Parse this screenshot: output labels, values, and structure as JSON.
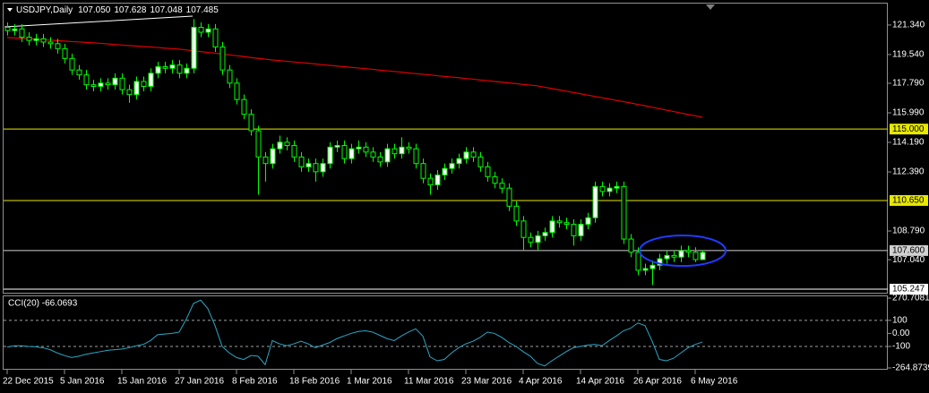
{
  "header": {
    "symbol": "USDJPY,Daily",
    "ohlc": [
      "107.050",
      "107.628",
      "107.048",
      "107.485"
    ]
  },
  "chart_data": [
    {
      "type": "candlestick",
      "categories": [
        "22 Dec 2015",
        null,
        null,
        null,
        null,
        null,
        null,
        null,
        "5 Jan 2016",
        null,
        null,
        null,
        null,
        null,
        null,
        null,
        "15 Jan 2016",
        null,
        null,
        null,
        null,
        null,
        null,
        null,
        "27 Jan 2016",
        null,
        null,
        null,
        null,
        null,
        null,
        null,
        "8 Feb 2016",
        null,
        null,
        null,
        null,
        null,
        null,
        null,
        "18 Feb 2016",
        null,
        null,
        null,
        null,
        null,
        null,
        null,
        "1 Mar 2016",
        null,
        null,
        null,
        null,
        null,
        null,
        null,
        "11 Mar 2016",
        null,
        null,
        null,
        null,
        null,
        null,
        null,
        "23 Mar 2016",
        null,
        null,
        null,
        null,
        null,
        null,
        null,
        "4 Apr 2016",
        null,
        null,
        null,
        null,
        null,
        null,
        null,
        "14 Apr 2016",
        null,
        null,
        null,
        null,
        null,
        null,
        null,
        "26 Apr 2016",
        null,
        null,
        null,
        null,
        null,
        null,
        null,
        "6 May 2016",
        null
      ],
      "open": [
        121.2,
        121.0,
        121.1,
        120.6,
        120.4,
        120.5,
        120.3,
        120.2,
        119.9,
        119.3,
        118.6,
        118.3,
        117.7,
        117.6,
        117.8,
        117.7,
        118.1,
        117.4,
        117.1,
        117.9,
        117.6,
        118.4,
        118.8,
        118.7,
        118.9,
        118.4,
        118.7,
        121.2,
        120.9,
        121.1,
        120.0,
        118.6,
        117.8,
        116.8,
        115.9,
        114.9,
        113.3,
        112.9,
        113.8,
        114.2,
        114.0,
        113.3,
        112.7,
        112.9,
        112.4,
        112.9,
        113.9,
        114.0,
        113.2,
        113.8,
        113.9,
        113.6,
        113.3,
        113.0,
        113.8,
        113.5,
        113.9,
        113.8,
        112.9,
        112.0,
        111.6,
        112.2,
        112.6,
        112.9,
        113.2,
        113.6,
        113.3,
        112.7,
        112.1,
        111.7,
        111.4,
        110.3,
        109.4,
        108.4,
        108.1,
        108.5,
        108.7,
        109.4,
        109.3,
        109.2,
        108.5,
        109.2,
        109.6,
        111.5,
        111.2,
        111.4,
        111.5,
        108.3,
        107.5,
        106.4,
        106.5,
        106.7,
        107.1,
        107.3,
        107.2,
        107.6,
        107.5,
        107.05
      ],
      "high": [
        121.5,
        121.4,
        121.4,
        120.9,
        120.8,
        120.8,
        120.6,
        120.5,
        120.2,
        119.6,
        118.9,
        118.6,
        118.0,
        118.1,
        118.1,
        118.4,
        118.4,
        117.7,
        118.2,
        118.2,
        118.7,
        119.1,
        119.1,
        119.2,
        119.2,
        119.0,
        121.7,
        121.5,
        121.4,
        121.4,
        120.3,
        118.9,
        118.1,
        117.1,
        116.2,
        115.2,
        113.6,
        114.1,
        114.6,
        114.5,
        114.3,
        113.6,
        113.2,
        113.2,
        113.2,
        114.2,
        114.3,
        114.3,
        114.1,
        114.3,
        114.2,
        113.9,
        113.6,
        114.1,
        114.1,
        114.5,
        114.2,
        114.1,
        113.2,
        112.3,
        112.5,
        112.9,
        113.2,
        113.5,
        113.9,
        113.9,
        113.6,
        113.0,
        112.4,
        112.0,
        111.7,
        110.6,
        109.7,
        108.7,
        108.8,
        109.0,
        109.7,
        109.7,
        109.6,
        109.5,
        109.5,
        109.9,
        111.8,
        111.8,
        111.7,
        111.8,
        111.8,
        108.6,
        107.8,
        106.8,
        107.0,
        107.4,
        107.6,
        107.6,
        107.9,
        107.9,
        107.8,
        107.628
      ],
      "low": [
        120.7,
        120.7,
        120.3,
        120.1,
        120.1,
        120.0,
        119.9,
        119.6,
        119.0,
        118.3,
        118.0,
        117.4,
        117.3,
        117.3,
        117.4,
        117.4,
        117.1,
        116.6,
        116.8,
        117.3,
        117.3,
        118.1,
        118.4,
        118.4,
        118.1,
        118.1,
        118.4,
        120.6,
        120.6,
        119.7,
        118.3,
        117.5,
        116.5,
        115.6,
        114.6,
        111.0,
        111.8,
        112.6,
        113.5,
        113.7,
        113.0,
        112.4,
        112.4,
        111.8,
        112.1,
        112.6,
        113.6,
        112.9,
        112.9,
        113.5,
        113.3,
        113.0,
        112.7,
        112.7,
        113.2,
        113.2,
        113.5,
        112.6,
        111.7,
        111.0,
        111.3,
        111.9,
        112.3,
        112.6,
        112.9,
        113.0,
        112.4,
        111.8,
        111.4,
        111.1,
        110.0,
        109.1,
        107.6,
        107.8,
        107.6,
        108.2,
        108.4,
        109.0,
        108.9,
        107.9,
        108.2,
        108.9,
        109.3,
        110.9,
        110.9,
        111.1,
        108.0,
        107.2,
        106.1,
        106.1,
        105.5,
        106.4,
        106.8,
        106.9,
        106.9,
        107.2,
        106.9,
        107.048
      ],
      "close": [
        121.0,
        121.1,
        120.6,
        120.4,
        120.5,
        120.3,
        120.2,
        119.9,
        119.3,
        118.6,
        118.3,
        117.7,
        117.6,
        117.8,
        117.7,
        118.1,
        117.4,
        117.1,
        117.9,
        117.6,
        118.4,
        118.8,
        118.7,
        118.9,
        118.4,
        118.7,
        121.2,
        120.9,
        121.1,
        120.0,
        118.6,
        117.8,
        116.8,
        115.9,
        114.9,
        113.3,
        112.9,
        113.8,
        114.2,
        114.0,
        113.3,
        112.7,
        112.9,
        112.4,
        112.9,
        113.9,
        114.0,
        113.2,
        113.8,
        113.9,
        113.6,
        113.3,
        113.0,
        113.8,
        113.5,
        113.9,
        113.8,
        112.9,
        112.0,
        111.6,
        112.2,
        112.6,
        112.9,
        113.2,
        113.6,
        113.3,
        112.7,
        112.1,
        111.7,
        111.4,
        110.3,
        109.4,
        108.4,
        108.1,
        108.5,
        108.7,
        109.4,
        109.3,
        109.2,
        108.5,
        109.2,
        109.6,
        111.5,
        111.2,
        111.4,
        111.5,
        108.3,
        107.5,
        106.4,
        106.5,
        106.7,
        107.1,
        107.3,
        107.2,
        107.6,
        107.5,
        107.05,
        107.485
      ],
      "up_color": "#ffffff",
      "down_color": "#000000",
      "wick_color": "#00ff00",
      "ma": {
        "color": "#e00000",
        "values": [
          120.58,
          120.55,
          120.53,
          120.5,
          120.47,
          120.44,
          120.42,
          120.39,
          120.36,
          120.33,
          120.31,
          120.28,
          120.25,
          120.22,
          120.19,
          120.15,
          120.12,
          120.09,
          120.06,
          120.03,
          120.0,
          119.97,
          119.93,
          119.9,
          119.87,
          119.82,
          119.77,
          119.72,
          119.67,
          119.62,
          119.57,
          119.52,
          119.47,
          119.42,
          119.36,
          119.31,
          119.26,
          119.21,
          119.17,
          119.13,
          119.09,
          119.05,
          119.01,
          118.97,
          118.92,
          118.88,
          118.84,
          118.8,
          118.76,
          118.72,
          118.68,
          118.64,
          118.59,
          118.55,
          118.51,
          118.47,
          118.42,
          118.38,
          118.34,
          118.3,
          118.25,
          118.21,
          118.17,
          118.13,
          118.08,
          118.04,
          117.99,
          117.95,
          117.9,
          117.86,
          117.81,
          117.77,
          117.72,
          117.68,
          117.63,
          117.55,
          117.47,
          117.39,
          117.31,
          117.23,
          117.15,
          117.07,
          116.99,
          116.91,
          116.83,
          116.75,
          116.67,
          116.59,
          116.5,
          116.42,
          116.33,
          116.24,
          116.15,
          116.07,
          115.98,
          115.89,
          115.81,
          115.72
        ]
      },
      "ylim": [
        105.03,
        122.59
      ],
      "yticks": [
        {
          "value": 121.34,
          "label": "121.340"
        },
        {
          "value": 119.54,
          "label": "119.540"
        },
        {
          "value": 117.79,
          "label": "117.790"
        },
        {
          "value": 115.99,
          "label": "115.990"
        },
        {
          "value": 114.19,
          "label": "114.190"
        },
        {
          "value": 112.39,
          "label": "112.390"
        },
        {
          "value": 108.79,
          "label": "108.790"
        },
        {
          "value": 107.04,
          "label": "107.040"
        }
      ],
      "levels": [
        {
          "value": 115,
          "label": "115.000",
          "color": "#e8e800"
        },
        {
          "value": 110.65,
          "label": "110.650",
          "color": "#e8e800"
        },
        {
          "value": 107.6,
          "label": "107.600",
          "color": "#d0d0d0"
        },
        {
          "value": 105.247,
          "label": "105.247",
          "color": "#ffffff"
        }
      ]
    },
    {
      "type": "line",
      "title": "CCI(20) -66.0693",
      "color": "#2aa8c8",
      "values": [
        -105,
        -95,
        -95,
        -100,
        -103,
        -110,
        -125,
        -150,
        -170,
        -185,
        -175,
        -160,
        -150,
        -140,
        -130,
        -125,
        -120,
        -110,
        -95,
        -85,
        -55,
        -10,
        -5,
        0,
        10,
        110,
        230,
        255,
        190,
        60,
        -100,
        -150,
        -185,
        -200,
        -170,
        -175,
        -240,
        -55,
        -80,
        -95,
        -80,
        -60,
        -80,
        -110,
        -90,
        -70,
        -40,
        -20,
        0,
        15,
        20,
        10,
        -15,
        -40,
        -55,
        -20,
        10,
        35,
        -20,
        -180,
        -210,
        -200,
        -150,
        -110,
        -80,
        -60,
        -30,
        10,
        0,
        -30,
        -70,
        -100,
        -140,
        -175,
        -230,
        -250,
        -210,
        -175,
        -140,
        -110,
        -100,
        -90,
        -85,
        -95,
        -55,
        -20,
        20,
        40,
        80,
        60,
        -60,
        -200,
        -210,
        -190,
        -150,
        -110,
        -85,
        -66.0693
      ],
      "ylim": [
        -264.8739,
        270.7081
      ],
      "yticks": [
        270.7081,
        100,
        {
          "value": 0,
          "label": "0.00"
        },
        -100,
        -264.8739
      ],
      "levels": [
        100,
        -100
      ]
    }
  ]
}
